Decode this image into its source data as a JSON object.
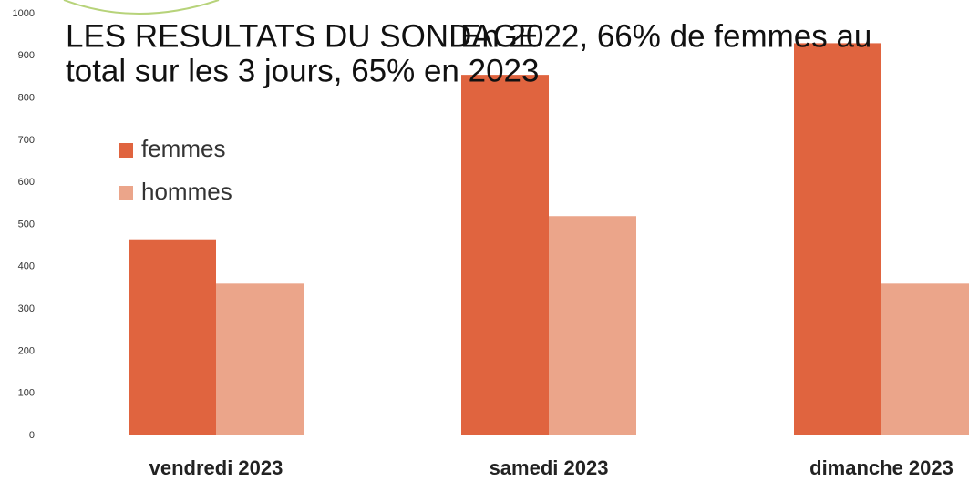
{
  "chart_data": {
    "type": "bar",
    "title": "LES RESULTATS DU SONDAGE",
    "annotation": [
      "En 2022, 66% de femmes au",
      "total sur les 3 jours, 65% en 2023"
    ],
    "categories": [
      "vendredi 2023",
      "samedi 2023",
      "dimanche 2023"
    ],
    "series": [
      {
        "name": "femmes",
        "color": "#e0643f",
        "values": [
          465,
          855,
          930
        ]
      },
      {
        "name": "hommes",
        "color": "#eba58a",
        "values": [
          360,
          520,
          360
        ]
      }
    ],
    "ylim": [
      0,
      1000
    ],
    "yticks": [
      0,
      100,
      200,
      300,
      400,
      500,
      600,
      700,
      800,
      900,
      1000
    ],
    "grid": false,
    "legend": "upper left"
  }
}
